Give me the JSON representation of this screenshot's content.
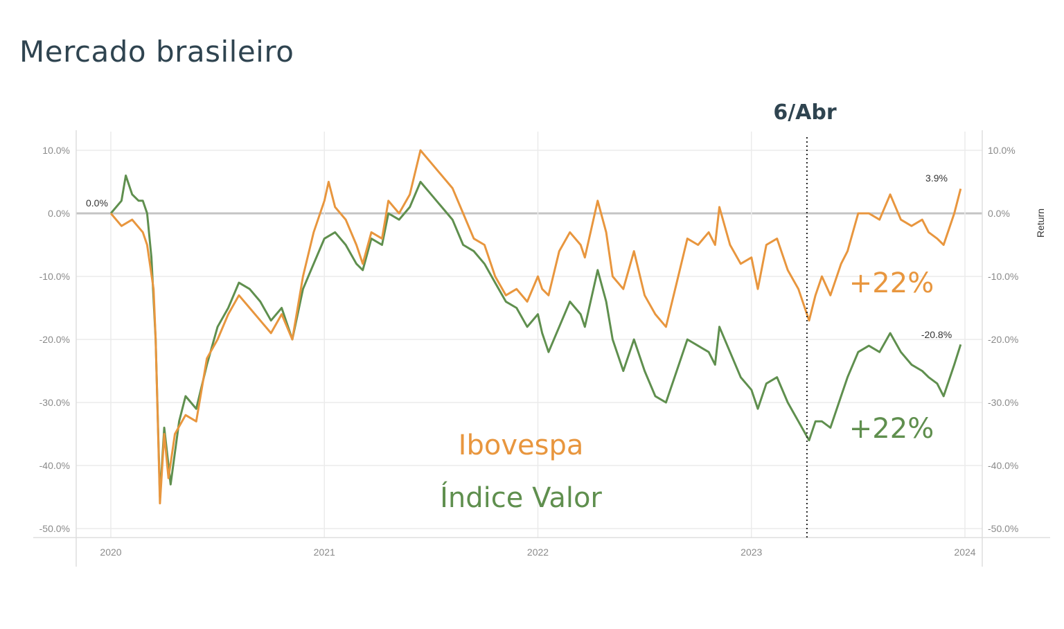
{
  "title": "Mercado brasileiro",
  "chart_data": {
    "type": "line",
    "title": "Mercado brasileiro",
    "xlabel": "",
    "ylabel": "Return",
    "xlim": [
      2019.85,
      2024.05
    ],
    "ylim": [
      -50,
      10
    ],
    "x_ticks": [
      "2020",
      "2021",
      "2022",
      "2023",
      "2024"
    ],
    "x_tick_values": [
      2020,
      2021,
      2022,
      2023,
      2024
    ],
    "y_ticks": [
      "10.0%",
      "0.0%",
      "-10.0%",
      "-20.0%",
      "-30.0%",
      "-40.0%",
      "-50.0%"
    ],
    "y_tick_values": [
      10,
      0,
      -10,
      -20,
      -30,
      -40,
      -50
    ],
    "grid": true,
    "start_label": "0.0%",
    "event": {
      "label": "6/Abr",
      "x": 2023.26
    },
    "annotations": [
      {
        "text": "+22%",
        "series": "Ibovespa"
      },
      {
        "text": "+22%",
        "series": "Índice Valor"
      }
    ],
    "series": [
      {
        "name": "Ibovespa",
        "color": "#e8963e",
        "end_label": "3.9%",
        "x": [
          2020.0,
          2020.05,
          2020.1,
          2020.15,
          2020.17,
          2020.2,
          2020.21,
          2020.23,
          2020.25,
          2020.27,
          2020.3,
          2020.35,
          2020.4,
          2020.45,
          2020.5,
          2020.55,
          2020.6,
          2020.65,
          2020.7,
          2020.75,
          2020.8,
          2020.85,
          2020.9,
          2020.95,
          2021.0,
          2021.02,
          2021.05,
          2021.1,
          2021.15,
          2021.18,
          2021.22,
          2021.27,
          2021.3,
          2021.35,
          2021.4,
          2021.45,
          2021.5,
          2021.55,
          2021.6,
          2021.65,
          2021.7,
          2021.75,
          2021.8,
          2021.85,
          2021.9,
          2021.95,
          2022.0,
          2022.02,
          2022.05,
          2022.1,
          2022.15,
          2022.2,
          2022.22,
          2022.28,
          2022.32,
          2022.35,
          2022.4,
          2022.45,
          2022.5,
          2022.55,
          2022.6,
          2022.65,
          2022.7,
          2022.75,
          2022.8,
          2022.83,
          2022.85,
          2022.9,
          2022.95,
          2023.0,
          2023.03,
          2023.07,
          2023.12,
          2023.17,
          2023.22,
          2023.27,
          2023.3,
          2023.33,
          2023.37,
          2023.42,
          2023.45,
          2023.5,
          2023.55,
          2023.6,
          2023.65,
          2023.7,
          2023.75,
          2023.8,
          2023.83,
          2023.87,
          2023.9,
          2023.95,
          2023.98
        ],
        "y": [
          0,
          -2,
          -1,
          -3,
          -5,
          -12,
          -20,
          -46,
          -35,
          -42,
          -35,
          -32,
          -33,
          -23,
          -20,
          -16,
          -13,
          -15,
          -17,
          -19,
          -16,
          -20,
          -10,
          -3,
          2,
          5,
          1,
          -1,
          -5,
          -8,
          -3,
          -4,
          2,
          0,
          3,
          10,
          8,
          6,
          4,
          0,
          -4,
          -5,
          -10,
          -13,
          -12,
          -14,
          -10,
          -12,
          -13,
          -6,
          -3,
          -5,
          -7,
          2,
          -3,
          -10,
          -12,
          -6,
          -13,
          -16,
          -18,
          -11,
          -4,
          -5,
          -3,
          -5,
          1,
          -5,
          -8,
          -7,
          -12,
          -5,
          -4,
          -9,
          -12,
          -17,
          -13,
          -10,
          -13,
          -8,
          -6,
          0,
          0,
          -1,
          3,
          -1,
          -2,
          -1,
          -3,
          -4,
          -5,
          0,
          3.9
        ]
      },
      {
        "name": "Índice Valor",
        "color": "#5f8f4e",
        "end_label": "-20.8%",
        "x": [
          2020.0,
          2020.05,
          2020.07,
          2020.1,
          2020.13,
          2020.15,
          2020.17,
          2020.19,
          2020.21,
          2020.23,
          2020.25,
          2020.28,
          2020.32,
          2020.35,
          2020.4,
          2020.45,
          2020.5,
          2020.55,
          2020.6,
          2020.65,
          2020.7,
          2020.75,
          2020.8,
          2020.85,
          2020.9,
          2020.95,
          2021.0,
          2021.05,
          2021.1,
          2021.15,
          2021.18,
          2021.22,
          2021.27,
          2021.3,
          2021.35,
          2021.4,
          2021.45,
          2021.5,
          2021.55,
          2021.6,
          2021.65,
          2021.7,
          2021.75,
          2021.8,
          2021.85,
          2021.9,
          2021.95,
          2022.0,
          2022.02,
          2022.05,
          2022.1,
          2022.15,
          2022.2,
          2022.22,
          2022.28,
          2022.32,
          2022.35,
          2022.4,
          2022.45,
          2022.5,
          2022.55,
          2022.6,
          2022.65,
          2022.7,
          2022.75,
          2022.8,
          2022.83,
          2022.85,
          2022.9,
          2022.95,
          2023.0,
          2023.03,
          2023.07,
          2023.12,
          2023.17,
          2023.22,
          2023.27,
          2023.3,
          2023.33,
          2023.37,
          2023.42,
          2023.45,
          2023.5,
          2023.55,
          2023.6,
          2023.65,
          2023.7,
          2023.75,
          2023.8,
          2023.83,
          2023.87,
          2023.9,
          2023.95,
          2023.98
        ],
        "y": [
          0,
          2,
          6,
          3,
          2,
          2,
          0,
          -7,
          -20,
          -45,
          -34,
          -43,
          -33,
          -29,
          -31,
          -24,
          -18,
          -15,
          -11,
          -12,
          -14,
          -17,
          -15,
          -20,
          -12,
          -8,
          -4,
          -3,
          -5,
          -8,
          -9,
          -4,
          -5,
          0,
          -1,
          1,
          5,
          3,
          1,
          -1,
          -5,
          -6,
          -8,
          -11,
          -14,
          -15,
          -18,
          -16,
          -19,
          -22,
          -18,
          -14,
          -16,
          -18,
          -9,
          -14,
          -20,
          -25,
          -20,
          -25,
          -29,
          -30,
          -25,
          -20,
          -21,
          -22,
          -24,
          -18,
          -22,
          -26,
          -28,
          -31,
          -27,
          -26,
          -30,
          -33,
          -36,
          -33,
          -33,
          -34,
          -29,
          -26,
          -22,
          -21,
          -22,
          -19,
          -22,
          -24,
          -25,
          -26,
          -27,
          -29,
          -24,
          -20.8
        ]
      }
    ]
  }
}
